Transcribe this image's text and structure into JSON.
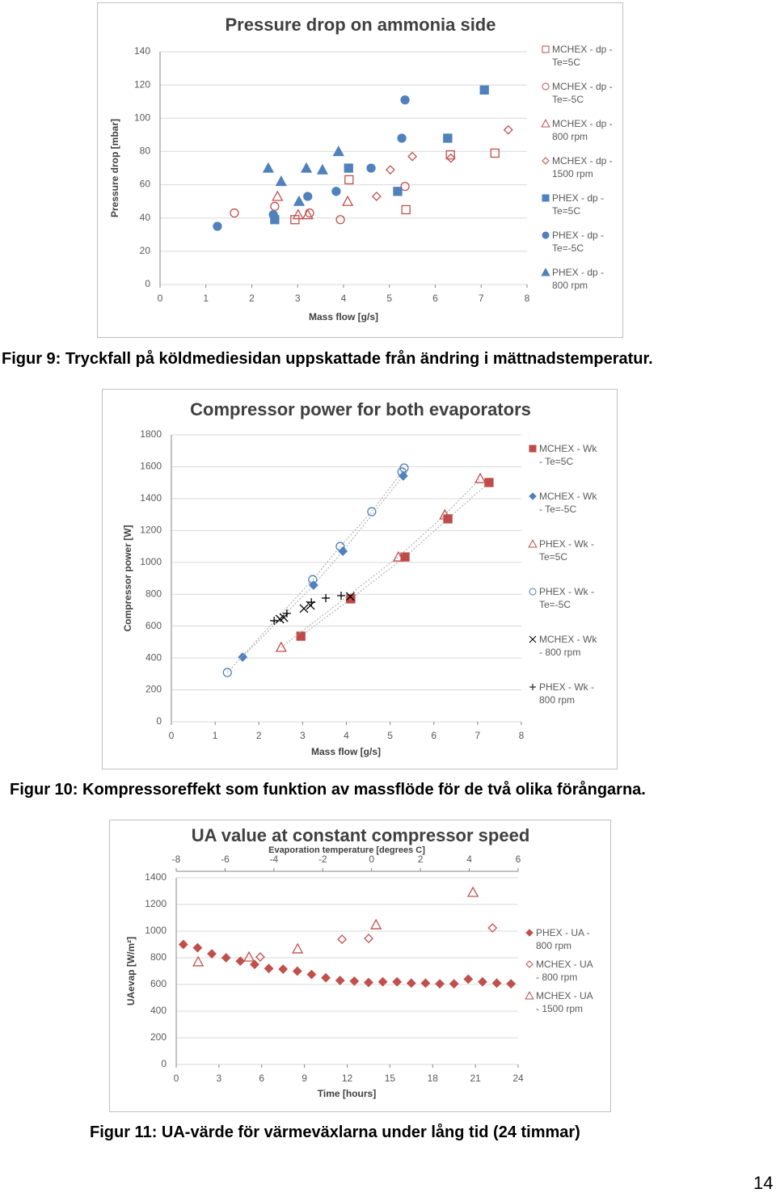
{
  "chart_data": [
    {
      "type": "scatter",
      "title": "Pressure drop on ammonia side",
      "xlabel": "Mass flow [g/s]",
      "ylabel": "Pressure drop [mbar]",
      "xlim": [
        0,
        8
      ],
      "xticks": [
        0,
        1,
        2,
        3,
        4,
        5,
        6,
        7,
        8
      ],
      "ylim": [
        0,
        140
      ],
      "yticks": [
        0,
        20,
        40,
        60,
        80,
        100,
        120,
        140
      ],
      "grid": true,
      "series": [
        {
          "name": "MCHEX - dp - Te=5C",
          "color": "#c0504d",
          "marker": "square",
          "filled": false,
          "x": [
            2.94,
            4.12,
            5.36,
            6.33,
            7.3
          ],
          "values": [
            39,
            63,
            45,
            78,
            79
          ]
        },
        {
          "name": "MCHEX - dp - Te=-5C",
          "color": "#c0504d",
          "marker": "circle",
          "filled": false,
          "x": [
            1.62,
            2.5,
            3.26,
            3.93,
            5.34
          ],
          "values": [
            43,
            47,
            43,
            39,
            59
          ]
        },
        {
          "name": "MCHEX - dp - 800 rpm",
          "color": "#c0504d",
          "marker": "triangle",
          "filled": false,
          "x": [
            2.56,
            3.01,
            3.22,
            4.09
          ],
          "values": [
            53,
            42,
            42,
            50
          ]
        },
        {
          "name": "MCHEX - dp - 1500 rpm",
          "color": "#c0504d",
          "marker": "diamond",
          "filled": false,
          "x": [
            4.72,
            5.02,
            5.5,
            6.34,
            7.59
          ],
          "values": [
            53,
            69,
            77,
            76,
            93
          ]
        },
        {
          "name": "PHEX - dp - Te=5C",
          "color": "#4f81bd",
          "marker": "square",
          "filled": true,
          "x": [
            2.5,
            4.11,
            5.18,
            6.27,
            7.07
          ],
          "values": [
            39,
            70,
            56,
            88,
            117
          ]
        },
        {
          "name": "PHEX - dp - Te=-5C",
          "color": "#4f81bd",
          "marker": "circle",
          "filled": true,
          "x": [
            1.25,
            2.47,
            3.22,
            3.84,
            4.6,
            5.27,
            5.34
          ],
          "values": [
            35,
            42,
            53,
            56,
            70,
            88,
            111
          ]
        },
        {
          "name": "PHEX - dp - 800 rpm",
          "color": "#4f81bd",
          "marker": "triangle",
          "filled": true,
          "x": [
            2.36,
            2.64,
            3.03,
            3.19,
            3.54,
            3.89
          ],
          "values": [
            70,
            62,
            50,
            70,
            69,
            80
          ]
        }
      ]
    },
    {
      "type": "scatter",
      "title": "Compressor power for both evaporators",
      "xlabel": "Mass flow [g/s]",
      "ylabel": "Compressor power [W]",
      "xlim": [
        0,
        8
      ],
      "xticks": [
        0,
        1,
        2,
        3,
        4,
        5,
        6,
        7,
        8
      ],
      "ylim": [
        0,
        1800
      ],
      "yticks": [
        0,
        200,
        400,
        600,
        800,
        1000,
        1200,
        1400,
        1600,
        1800
      ],
      "grid": true,
      "series": [
        {
          "name": "MCHEX - Wk - Te=5C",
          "color": "#be4b48",
          "marker": "square",
          "filled": true,
          "connected": true,
          "x": [
            2.96,
            4.1,
            5.34,
            6.32,
            7.26
          ],
          "values": [
            537,
            771,
            1034,
            1273,
            1501
          ]
        },
        {
          "name": "MCHEX - Wk - Te=-5C",
          "color": "#4f81bd",
          "marker": "diamond",
          "filled": true,
          "connected": true,
          "x": [
            1.63,
            3.25,
            3.92,
            5.3
          ],
          "values": [
            406,
            857,
            1070,
            1542
          ]
        },
        {
          "name": "PHEX - Wk - Te=5C",
          "color": "#c0504d",
          "marker": "triangle",
          "filled": false,
          "connected": true,
          "x": [
            2.51,
            5.19,
            6.25,
            7.06
          ],
          "values": [
            467,
            1034,
            1298,
            1526
          ]
        },
        {
          "name": "PHEX - Wk - Te=-5C",
          "color": "#4f81bd",
          "marker": "circle",
          "filled": false,
          "connected": true,
          "x": [
            1.28,
            3.23,
            3.86,
            4.58,
            5.27,
            5.32
          ],
          "values": [
            309,
            892,
            1100,
            1318,
            1567,
            1592
          ]
        },
        {
          "name": "MCHEX - Wk - 800 rpm",
          "color": "#000000",
          "marker": "x",
          "filled": false,
          "x": [
            2.48,
            2.57,
            3.03,
            3.18,
            4.09
          ],
          "values": [
            644,
            654,
            710,
            730,
            786
          ]
        },
        {
          "name": "PHEX - Wk - 800 rpm",
          "color": "#000000",
          "marker": "plus",
          "filled": false,
          "x": [
            2.35,
            2.64,
            3.2,
            3.53,
            3.88
          ],
          "values": [
            634,
            680,
            750,
            776,
            791
          ]
        }
      ]
    },
    {
      "type": "scatter",
      "title": "UA value at constant compressor speed",
      "xlabel": "Time [hours]",
      "x2label": "Evaporation temperature [degrees C]",
      "ylabel": "UAevap [W/m²]",
      "xlim": [
        0,
        24
      ],
      "xticks": [
        0,
        3,
        6,
        9,
        12,
        15,
        18,
        21,
        24
      ],
      "x2lim": [
        -8,
        6
      ],
      "x2ticks": [
        -8,
        -6,
        -4,
        -2,
        0,
        2,
        4,
        6
      ],
      "ylim": [
        0,
        1400
      ],
      "yticks": [
        0,
        200,
        400,
        600,
        800,
        1000,
        1200,
        1400
      ],
      "grid": true,
      "series": [
        {
          "name": "PHEX - UA - 800 rpm",
          "color": "#c0504d",
          "marker": "diamond",
          "filled": true,
          "x": [
            0.5,
            1.5,
            2.5,
            3.5,
            4.5,
            5.5,
            6.5,
            7.5,
            8.5,
            9.5,
            10.5,
            11.5,
            12.5,
            13.5,
            14.5,
            15.5,
            16.5,
            17.5,
            18.5,
            19.5,
            20.5,
            21.5,
            22.5,
            23.5
          ],
          "values": [
            900,
            875,
            830,
            800,
            775,
            750,
            720,
            715,
            700,
            675,
            650,
            630,
            625,
            615,
            620,
            620,
            610,
            610,
            605,
            605,
            640,
            620,
            610,
            605
          ]
        },
        {
          "name": "MCHEX - UA - 800 rpm",
          "color": "#c0504d",
          "marker": "diamond",
          "filled": false,
          "axis": "x2",
          "x": [
            -4.56,
            -1.21,
            -0.12,
            4.95
          ],
          "values": [
            806,
            939,
            945,
            1024
          ]
        },
        {
          "name": "MCHEX - UA - 1500 rpm",
          "color": "#c0504d",
          "marker": "triangle",
          "filled": false,
          "axis": "x2",
          "x": [
            -7.1,
            -5.02,
            -3.03,
            0.18,
            4.15
          ],
          "values": [
            770,
            806,
            867,
            1048,
            1291
          ]
        }
      ]
    }
  ],
  "captions": [
    "Figur 9: Tryckfall på köldmediesidan uppskattade från ändring i mättnadstemperatur.",
    "Figur 10: Kompressoreffekt som funktion av massflöde för de två olika förångarna.",
    "Figur 11: UA-värde för värmeväxlarna under lång tid (24 timmar)"
  ],
  "page_number": "14"
}
